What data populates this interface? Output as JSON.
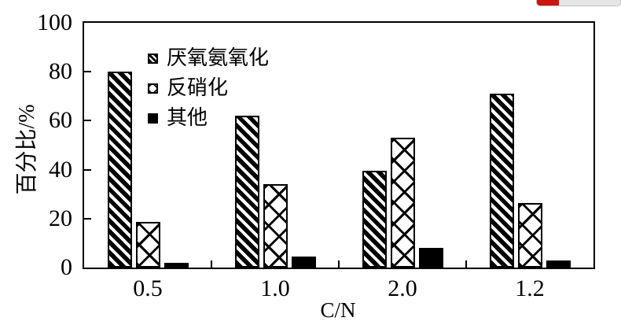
{
  "progress_indicator": {
    "fraction": 0.26,
    "fill_color": "#cc1410",
    "track_color": "#e6e6e6",
    "border_color": "#c0c0c0"
  },
  "chart_data": {
    "type": "bar",
    "title": "",
    "xlabel": "C/N",
    "ylabel": "百分比/%",
    "ylim": [
      0,
      100
    ],
    "yticks": [
      0,
      20,
      40,
      60,
      80,
      100
    ],
    "categories": [
      "0.5",
      "1.0",
      "2.0",
      "1.2"
    ],
    "series": [
      {
        "name": "厌氧氨氧化",
        "pattern": "diagonal-stripes",
        "values": [
          80,
          62,
          39.5,
          71
        ]
      },
      {
        "name": "反硝化",
        "pattern": "crosshatch",
        "values": [
          18.5,
          34,
          53,
          26.5
        ]
      },
      {
        "name": "其他",
        "pattern": "solid-black",
        "values": [
          2,
          4.5,
          8,
          3
        ]
      }
    ],
    "legend_position": "upper-left-inside",
    "grid": false,
    "axis_color": "#000000",
    "bar_outline_color": "#000000",
    "background": "#ffffff"
  }
}
